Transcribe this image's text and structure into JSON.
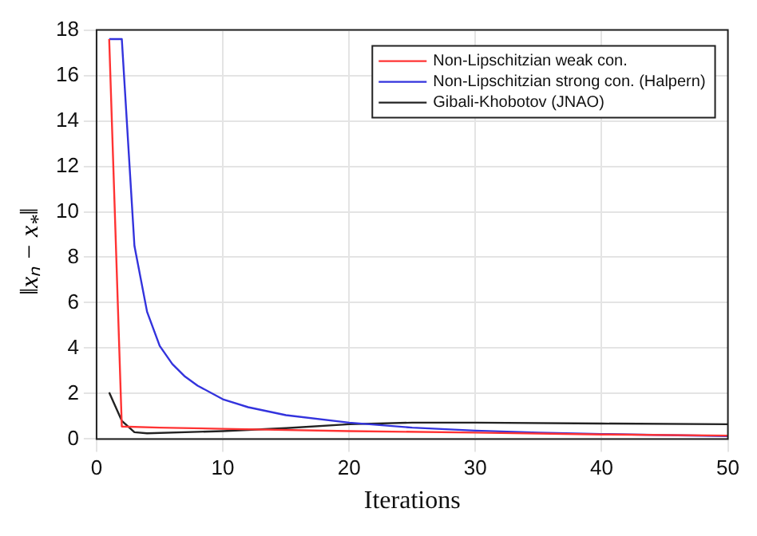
{
  "chart_data": {
    "type": "line",
    "xlabel": "Iterations",
    "ylabel": "‖xₙ − x$_{*}$‖",
    "xlim": [
      0,
      50
    ],
    "ylim": [
      0,
      18
    ],
    "xticks": [
      0,
      10,
      20,
      30,
      40,
      50
    ],
    "yticks": [
      0,
      2,
      4,
      6,
      8,
      10,
      12,
      14,
      16,
      18
    ],
    "grid": true,
    "legend": "top right",
    "marker": "none",
    "line_style": "solid",
    "series": [
      {
        "name": "Non-Lipschitzian weak con.",
        "color": "#ff3333",
        "x": [
          1,
          2,
          5,
          10,
          20,
          30,
          40,
          50
        ],
        "values": [
          17.6,
          0.55,
          0.5,
          0.45,
          0.35,
          0.28,
          0.2,
          0.15
        ]
      },
      {
        "name": "Non-Lipschitzian strong con. (Halpern)",
        "color": "#3333dd",
        "x": [
          1,
          2,
          3,
          4,
          5,
          6,
          7,
          8,
          10,
          12,
          15,
          20,
          25,
          30,
          35,
          40,
          45,
          50
        ],
        "values": [
          17.6,
          17.6,
          8.5,
          5.6,
          4.1,
          3.3,
          2.75,
          2.35,
          1.75,
          1.4,
          1.05,
          0.72,
          0.5,
          0.37,
          0.28,
          0.22,
          0.17,
          0.13
        ]
      },
      {
        "name": "Gibali-Khobotov (JNAO)",
        "color": "#222222",
        "x": [
          1,
          2,
          3,
          4,
          10,
          15,
          20,
          25,
          30,
          40,
          50
        ],
        "values": [
          2.05,
          0.8,
          0.3,
          0.25,
          0.35,
          0.48,
          0.65,
          0.72,
          0.72,
          0.68,
          0.65
        ]
      }
    ]
  }
}
